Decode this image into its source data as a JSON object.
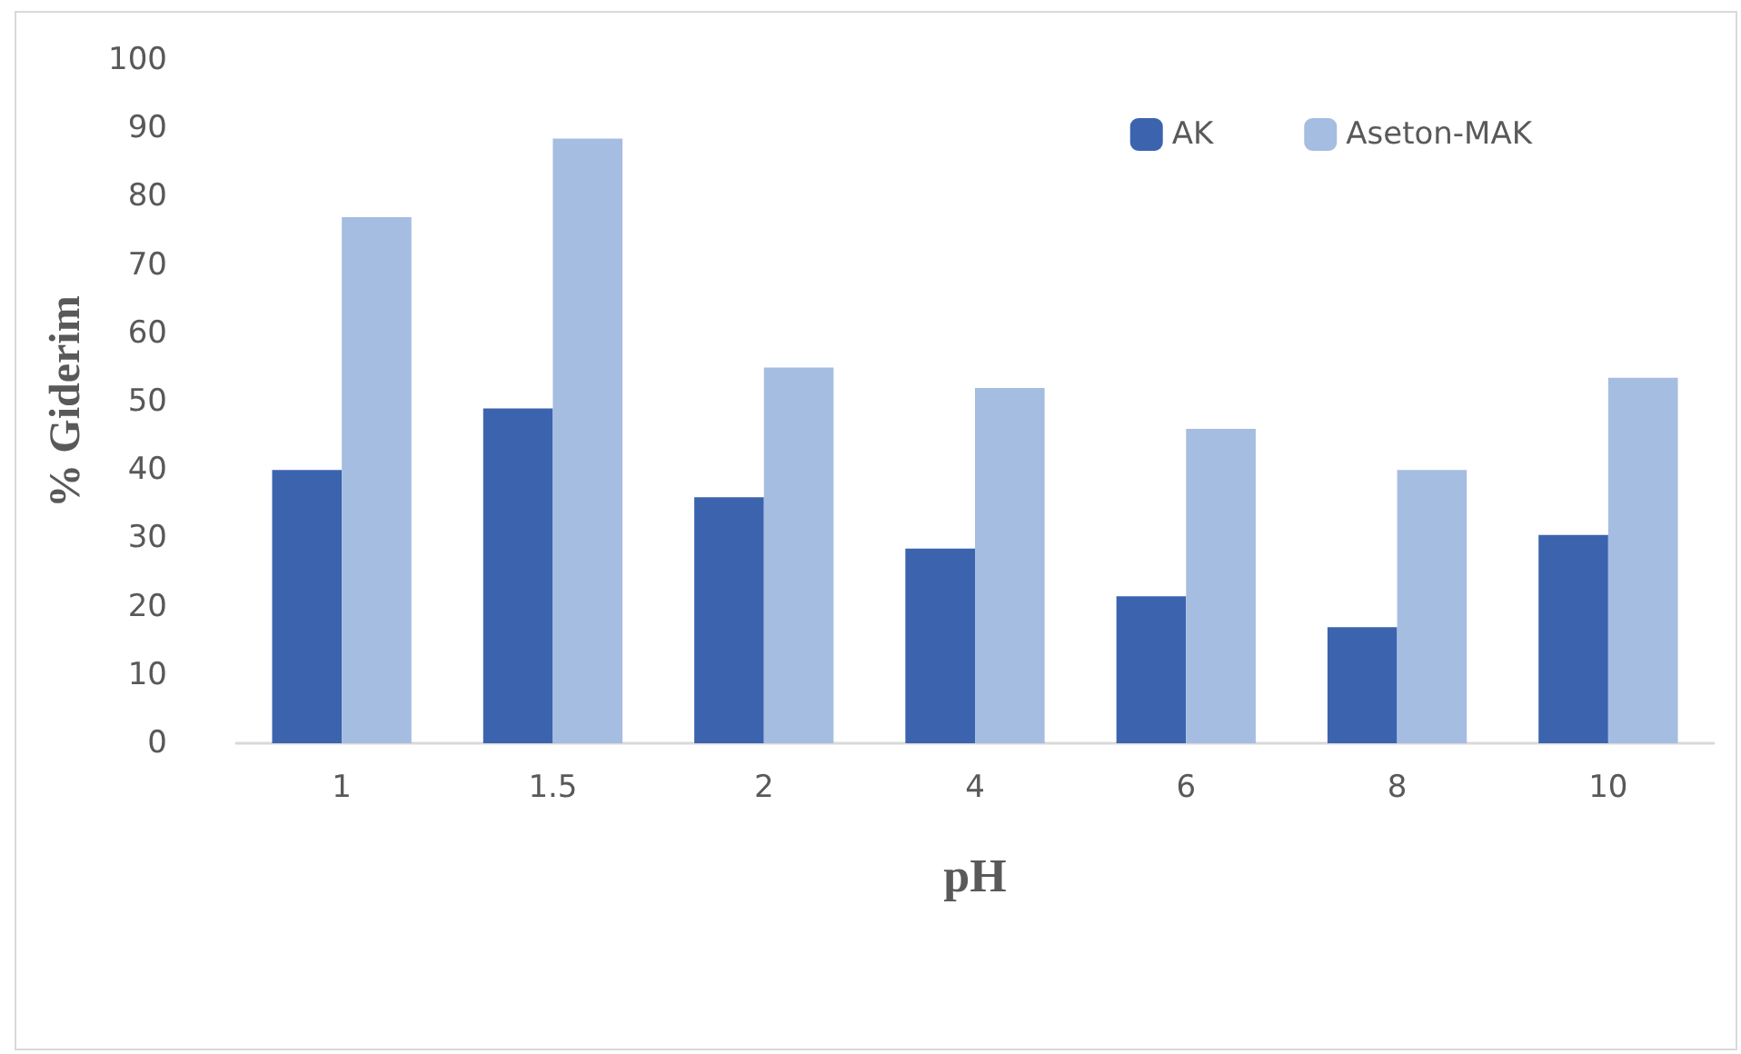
{
  "chart_data": {
    "type": "bar",
    "xlabel": "pH",
    "ylabel": "% Giderim",
    "categories": [
      "1",
      "1.5",
      "2",
      "4",
      "6",
      "8",
      "10"
    ],
    "series": [
      {
        "name": "AK",
        "color": "#3c64ae",
        "values": [
          40,
          49,
          36,
          28.5,
          21.5,
          17,
          30.5
        ]
      },
      {
        "name": "Aseton-MAK",
        "color": "#a6bde2",
        "values": [
          77,
          88.5,
          55,
          52,
          46,
          40,
          53.5
        ]
      }
    ],
    "ylim": [
      0,
      100
    ],
    "yticks": [
      0,
      10,
      20,
      30,
      40,
      50,
      60,
      70,
      80,
      90,
      100
    ],
    "grid": false,
    "legend": "top right"
  }
}
